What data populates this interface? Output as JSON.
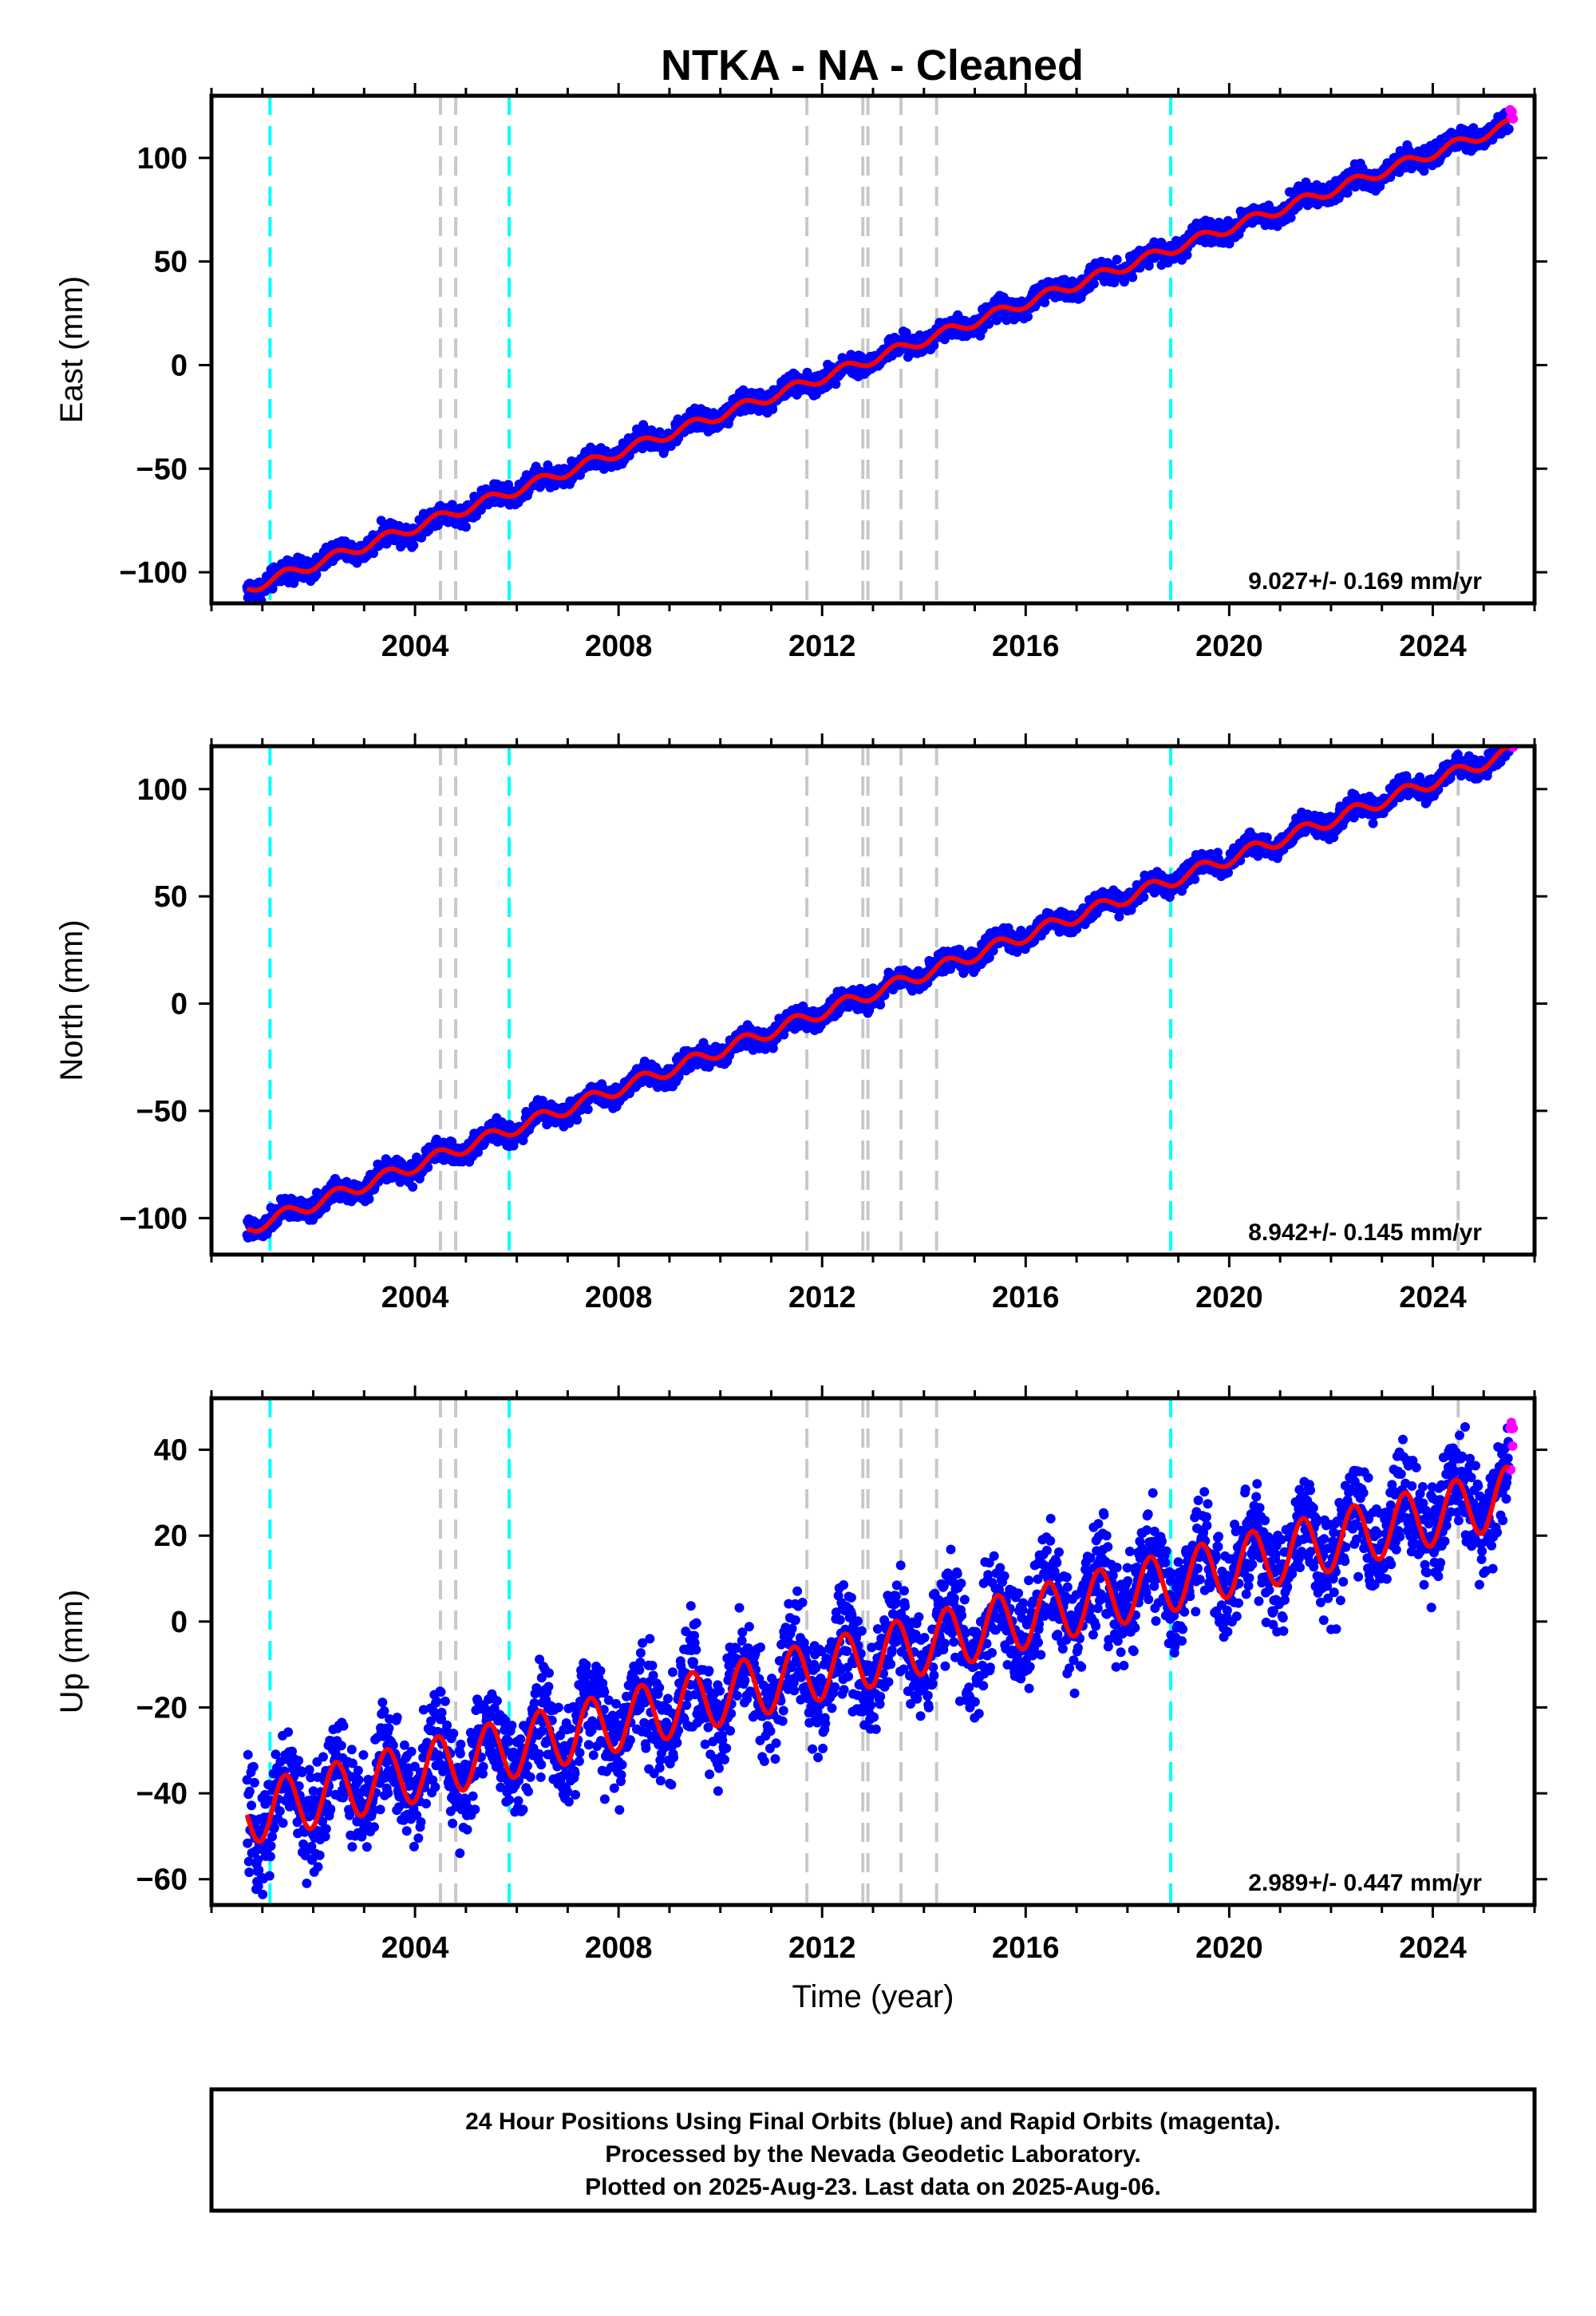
{
  "title": "NTKA  - NA - Cleaned",
  "colors": {
    "final_orbits": "#0000ff",
    "rapid_orbits": "#ff00ff",
    "model_fit": "#ff0000",
    "equipment_change": "#c8c8c8",
    "earthquake": "#00ffff"
  },
  "caption": {
    "line1": "24 Hour Positions Using Final Orbits (blue) and Rapid Orbits (magenta).",
    "line2": "Processed by the Nevada Geodetic Laboratory.",
    "line3": "Plotted on 2025-Aug-23. Last data on 2025-Aug-06."
  },
  "chart_data": [
    {
      "type": "scatter",
      "component": "east",
      "ylabel": "East (mm)",
      "xlabel": "",
      "xlim": [
        2000.0,
        2026.0
      ],
      "ylim": [
        -115,
        130
      ],
      "xticks": [
        2004,
        2008,
        2012,
        2016,
        2020,
        2024
      ],
      "yticks": [
        -100,
        -50,
        0,
        50,
        100
      ],
      "rate_label": "9.027+/- 0.169 mm/yr",
      "rate_mm_per_yr": 9.027,
      "fit_anchor": {
        "x": 2000.7,
        "y": -108
      },
      "seasonal_amplitude_mm": 2.5,
      "noise_mm": 2.5,
      "data_start": 2000.7,
      "data_end": 2025.5,
      "rapid_start": 2025.52,
      "grid": false,
      "legend": "none"
    },
    {
      "type": "scatter",
      "component": "north",
      "ylabel": "North (mm)",
      "xlabel": "",
      "xlim": [
        2000.0,
        2026.0
      ],
      "ylim": [
        -117,
        120
      ],
      "xticks": [
        2004,
        2008,
        2012,
        2016,
        2020,
        2024
      ],
      "yticks": [
        -100,
        -50,
        0,
        50,
        100
      ],
      "rate_label": "8.942+/- 0.145 mm/yr",
      "rate_mm_per_yr": 8.942,
      "fit_anchor": {
        "x": 2000.7,
        "y": -105
      },
      "seasonal_amplitude_mm": 3,
      "noise_mm": 2.5,
      "data_start": 2000.7,
      "data_end": 2025.5,
      "rapid_start": 2025.52,
      "grid": false,
      "legend": "none"
    },
    {
      "type": "scatter",
      "component": "up",
      "ylabel": "Up (mm)",
      "xlabel": "Time (year)",
      "xlim": [
        2000.0,
        2026.0
      ],
      "ylim": [
        -66,
        52
      ],
      "xticks": [
        2004,
        2008,
        2012,
        2016,
        2020,
        2024
      ],
      "yticks": [
        -60,
        -40,
        -20,
        0,
        20,
        40
      ],
      "rate_label": "2.989+/- 0.447 mm/yr",
      "rate_mm_per_yr": 2.989,
      "fit_anchor": {
        "x": 2000.7,
        "y": -45
      },
      "seasonal_amplitude_mm": 7,
      "noise_mm": 6,
      "data_start": 2000.7,
      "data_end": 2025.5,
      "rapid_start": 2025.52,
      "grid": false,
      "legend": "none"
    }
  ],
  "events": {
    "earthquake_years": [
      2001.15,
      2005.85,
      2018.85
    ],
    "equipment_change_years": [
      2004.5,
      2004.8,
      2011.7,
      2012.8,
      2012.9,
      2013.55,
      2014.25,
      2024.5
    ]
  }
}
